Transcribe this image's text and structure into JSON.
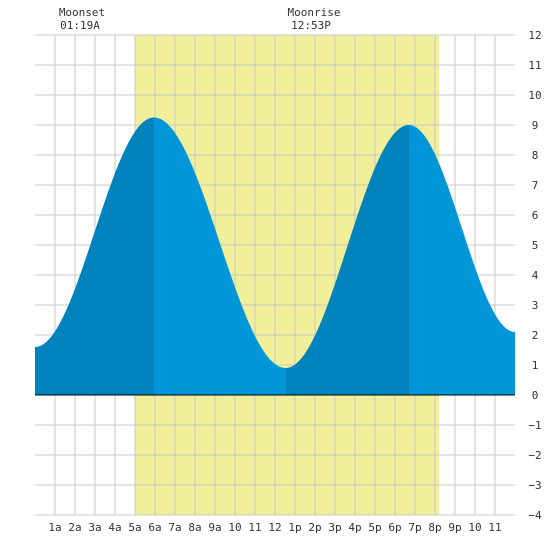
{
  "moon_events": [
    {
      "name": "Moonset",
      "time": "01:19A",
      "hour": 1.32
    },
    {
      "name": "Moonrise",
      "time": "12:53P",
      "hour": 12.88
    }
  ],
  "chart_data": {
    "type": "area",
    "title": "",
    "xlabel": "",
    "ylabel": "",
    "xlim": [
      0,
      24
    ],
    "ylim": [
      -4,
      12
    ],
    "grid": true,
    "x_ticks": [
      {
        "hour": 1,
        "label": "1a"
      },
      {
        "hour": 2,
        "label": "2a"
      },
      {
        "hour": 3,
        "label": "3a"
      },
      {
        "hour": 4,
        "label": "4a"
      },
      {
        "hour": 5,
        "label": "5a"
      },
      {
        "hour": 6,
        "label": "6a"
      },
      {
        "hour": 7,
        "label": "7a"
      },
      {
        "hour": 8,
        "label": "8a"
      },
      {
        "hour": 9,
        "label": "9a"
      },
      {
        "hour": 10,
        "label": "10"
      },
      {
        "hour": 11,
        "label": "11"
      },
      {
        "hour": 12,
        "label": "12"
      },
      {
        "hour": 13,
        "label": "1p"
      },
      {
        "hour": 14,
        "label": "2p"
      },
      {
        "hour": 15,
        "label": "3p"
      },
      {
        "hour": 16,
        "label": "4p"
      },
      {
        "hour": 17,
        "label": "5p"
      },
      {
        "hour": 18,
        "label": "6p"
      },
      {
        "hour": 19,
        "label": "7p"
      },
      {
        "hour": 20,
        "label": "8p"
      },
      {
        "hour": 21,
        "label": "9p"
      },
      {
        "hour": 22,
        "label": "10"
      },
      {
        "hour": 23,
        "label": "11"
      }
    ],
    "y_ticks": [
      12,
      11,
      10,
      9,
      8,
      7,
      6,
      5,
      4,
      3,
      2,
      1,
      0,
      -1,
      -2,
      -3,
      -4
    ],
    "daylight": {
      "start_hour": 5.0,
      "end_hour": 20.2
    },
    "tide_extrema": [
      {
        "hour": 0.0,
        "height": 1.6
      },
      {
        "hour": 5.95,
        "height": 9.25
      },
      {
        "hour": 12.53,
        "height": 0.9
      },
      {
        "hour": 18.7,
        "height": 9.0
      },
      {
        "hour": 24.0,
        "height": 2.1
      }
    ],
    "shade_bands": [
      {
        "start_hour": 0.0,
        "end_hour": 5.95,
        "tone": "dark"
      },
      {
        "start_hour": 5.95,
        "end_hour": 12.53,
        "tone": "light"
      },
      {
        "start_hour": 12.53,
        "end_hour": 18.7,
        "tone": "dark"
      },
      {
        "start_hour": 18.7,
        "end_hour": 24.0,
        "tone": "light"
      }
    ],
    "colors": {
      "daylight": "#f2ef9a",
      "tide_dark": "#0082bc",
      "tide_light": "#0096d8",
      "grid": "#c8c8c8",
      "zero_line": "#000000"
    }
  }
}
